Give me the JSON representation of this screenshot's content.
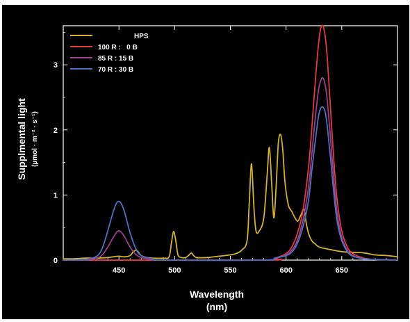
{
  "chart_data": {
    "type": "line",
    "xlabel": "Wavelength",
    "xlabel_unit": "(nm)",
    "ylabel": "Supplmental light",
    "ylabel_unit": "(µmol · m⁻² · s⁻¹)",
    "xlim": [
      400,
      700
    ],
    "ylim": [
      0,
      3.6
    ],
    "xticks": [
      450,
      500,
      550,
      600,
      650
    ],
    "yticks": [
      0,
      1,
      2,
      3
    ],
    "grid": false,
    "legend_position": "top-left",
    "background": "#000000",
    "axis_color": "#ffffff",
    "series": [
      {
        "name": "HPS",
        "color": "#d4b32a",
        "x": [
          400,
          410,
          420,
          430,
          440,
          445,
          450,
          455,
          460,
          463,
          466,
          470,
          475,
          480,
          490,
          495,
          497,
          499,
          501,
          503,
          506,
          510,
          513,
          515,
          517,
          520,
          530,
          540,
          550,
          555,
          560,
          565,
          567,
          569,
          571,
          573,
          576,
          580,
          583,
          585,
          587,
          589,
          591,
          593,
          595,
          597,
          599,
          602,
          605,
          610,
          613,
          616,
          618,
          620,
          623,
          626,
          630,
          640,
          650,
          660,
          670,
          680,
          690,
          700
        ],
        "y": [
          0.02,
          0.02,
          0.03,
          0.03,
          0.04,
          0.05,
          0.06,
          0.05,
          0.07,
          0.13,
          0.15,
          0.07,
          0.04,
          0.03,
          0.03,
          0.05,
          0.25,
          0.44,
          0.3,
          0.08,
          0.04,
          0.04,
          0.08,
          0.11,
          0.07,
          0.04,
          0.04,
          0.06,
          0.08,
          0.1,
          0.15,
          0.3,
          0.9,
          1.48,
          0.85,
          0.45,
          0.45,
          0.65,
          1.3,
          1.73,
          1.2,
          0.65,
          1.1,
          1.78,
          1.93,
          1.7,
          1.2,
          0.85,
          0.75,
          0.6,
          0.68,
          0.78,
          0.58,
          0.42,
          0.3,
          0.25,
          0.2,
          0.16,
          0.13,
          0.12,
          0.11,
          0.08,
          0.07,
          0.05
        ]
      },
      {
        "name": "100 R :   0 B",
        "color": "#e23b3b",
        "x": [
          400,
          580,
          590,
          600,
          605,
          610,
          615,
          620,
          623,
          626,
          629,
          631,
          633,
          635,
          637,
          640,
          643,
          646,
          650,
          655,
          660,
          670,
          680,
          700
        ],
        "y": [
          0,
          0,
          0.03,
          0.1,
          0.2,
          0.4,
          0.75,
          1.4,
          2.0,
          2.7,
          3.3,
          3.55,
          3.6,
          3.45,
          3.1,
          2.3,
          1.5,
          0.9,
          0.45,
          0.2,
          0.1,
          0.03,
          0.01,
          0
        ]
      },
      {
        "name": "85 R : 15 B",
        "color": "#9b3f8e",
        "x": [
          400,
          420,
          430,
          435,
          440,
          445,
          448,
          450,
          452,
          455,
          460,
          465,
          470,
          480,
          490,
          580,
          590,
          600,
          605,
          610,
          615,
          620,
          623,
          626,
          629,
          631,
          633,
          635,
          637,
          640,
          643,
          646,
          650,
          655,
          660,
          670,
          680,
          700
        ],
        "y": [
          0,
          0,
          0.03,
          0.08,
          0.2,
          0.35,
          0.43,
          0.45,
          0.43,
          0.36,
          0.2,
          0.09,
          0.04,
          0.01,
          0,
          0,
          0.03,
          0.08,
          0.15,
          0.3,
          0.6,
          1.1,
          1.6,
          2.15,
          2.6,
          2.75,
          2.8,
          2.7,
          2.45,
          1.85,
          1.2,
          0.7,
          0.35,
          0.15,
          0.07,
          0.02,
          0.01,
          0
        ]
      },
      {
        "name": "70 R : 30 B",
        "color": "#4f6fc2",
        "x": [
          400,
          420,
          430,
          435,
          440,
          445,
          448,
          450,
          452,
          455,
          460,
          465,
          470,
          480,
          490,
          580,
          590,
          600,
          605,
          610,
          615,
          620,
          623,
          626,
          629,
          631,
          633,
          635,
          637,
          640,
          643,
          646,
          650,
          655,
          660,
          670,
          680,
          700
        ],
        "y": [
          0,
          0.01,
          0.06,
          0.18,
          0.45,
          0.75,
          0.88,
          0.9,
          0.87,
          0.74,
          0.42,
          0.18,
          0.07,
          0.02,
          0,
          0,
          0.03,
          0.07,
          0.12,
          0.25,
          0.5,
          0.9,
          1.35,
          1.8,
          2.2,
          2.33,
          2.35,
          2.28,
          2.05,
          1.55,
          1.0,
          0.58,
          0.3,
          0.13,
          0.06,
          0.02,
          0.01,
          0
        ]
      }
    ]
  }
}
